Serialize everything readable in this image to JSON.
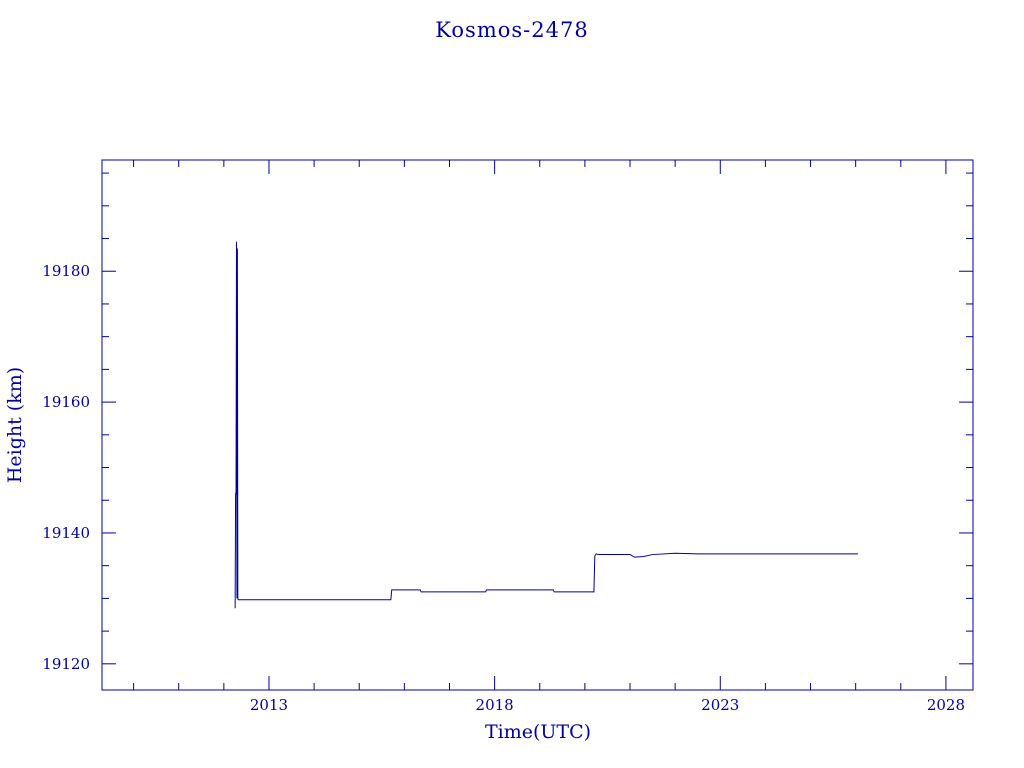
{
  "chart_data": {
    "type": "line",
    "title": "Kosmos-2478",
    "xlabel": "Time(UTC)",
    "ylabel": "Height (km)",
    "xlim": [
      2009.3,
      2028.6
    ],
    "ylim": [
      19116,
      19197
    ],
    "x_ticks": [
      2013,
      2018,
      2023,
      2028
    ],
    "x_tick_labels": [
      "2013",
      "2018",
      "2023",
      "2028"
    ],
    "y_ticks": [
      19120,
      19140,
      19160,
      19180
    ],
    "y_tick_labels": [
      "19120",
      "19140",
      "19160",
      "19180"
    ],
    "grid": false,
    "color": "#0000a0",
    "series": [
      {
        "x": [
          2012.25,
          2012.26,
          2012.27,
          2012.28,
          2012.29,
          2012.3,
          2012.31,
          2012.32,
          2012.35,
          2015.7,
          2015.72,
          2016.35,
          2016.37,
          2017.8,
          2017.82,
          2019.3,
          2019.32,
          2020.2,
          2020.22,
          2020.25,
          2020.3,
          2021.0,
          2021.1,
          2021.3,
          2021.5,
          2022.0,
          2022.5,
          2023.0,
          2024.0,
          2025.0,
          2026.0,
          2026.05
        ],
        "y": [
          19128.5,
          19146,
          19146,
          19184.5,
          19130,
          19183.5,
          19130,
          19129.8,
          19129.8,
          19129.8,
          19131.3,
          19131.3,
          19131.0,
          19131.0,
          19131.3,
          19131.3,
          19131.0,
          19131.0,
          19136.5,
          19136.8,
          19136.7,
          19136.7,
          19136.3,
          19136.4,
          19136.7,
          19136.9,
          19136.8,
          19136.8,
          19136.8,
          19136.8,
          19136.8,
          19136.8
        ]
      }
    ]
  }
}
